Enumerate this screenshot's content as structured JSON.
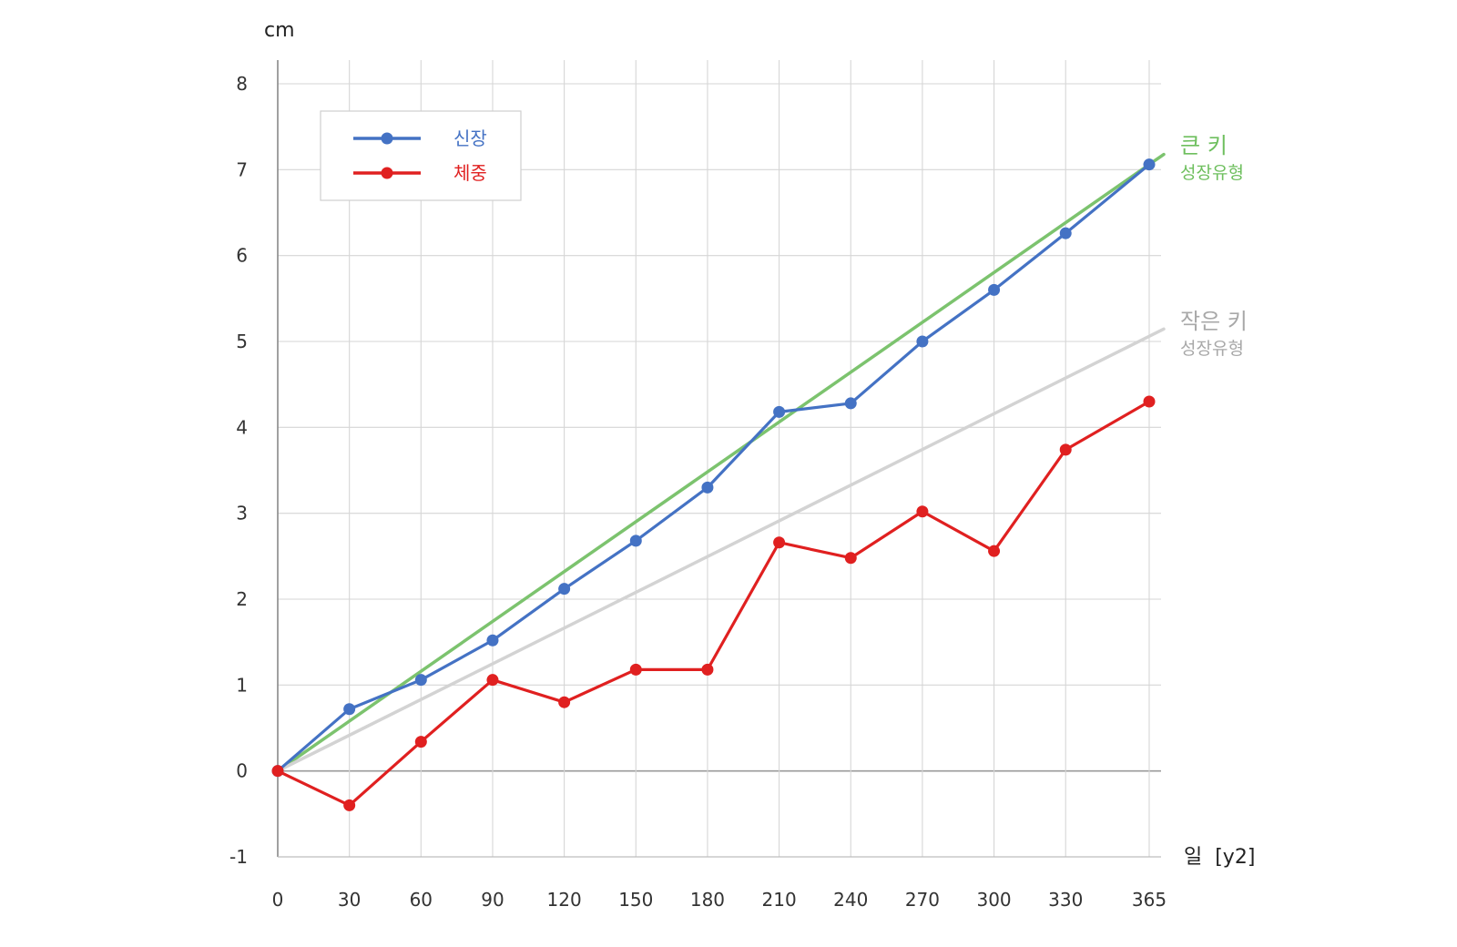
{
  "chart_data": {
    "type": "line",
    "y_unit": "cm",
    "x_unit": "일  [y2]",
    "x": [
      0,
      30,
      60,
      90,
      120,
      150,
      180,
      210,
      240,
      270,
      300,
      330,
      365
    ],
    "x_ticks": [
      "0",
      "30",
      "60",
      "90",
      "120",
      "150",
      "180",
      "210",
      "240",
      "270",
      "300",
      "330",
      "365"
    ],
    "y_ticks": [
      "-1",
      "0",
      "1",
      "2",
      "3",
      "4",
      "5",
      "6",
      "7",
      "8"
    ],
    "ylim": [
      -1,
      8
    ],
    "grid": true,
    "legend_position": "top-left",
    "series": [
      {
        "name": "신장",
        "color": "#4472c4",
        "values": [
          0,
          0.72,
          1.06,
          1.52,
          2.12,
          2.68,
          3.3,
          4.18,
          4.28,
          5.0,
          5.6,
          6.26,
          7.06
        ]
      },
      {
        "name": "체중",
        "color": "#e02020",
        "values": [
          0,
          -0.4,
          0.34,
          1.06,
          0.8,
          1.18,
          1.18,
          2.66,
          2.48,
          3.02,
          2.56,
          3.74,
          4.3
        ]
      }
    ],
    "reference_lines": [
      {
        "name_main": "큰 키",
        "name_sub": "성장유형",
        "color": "#7cc36e",
        "label_color": "#6ebf5e",
        "x": [
          0,
          365
        ],
        "values": [
          0,
          7.06
        ]
      },
      {
        "name_main": "작은 키",
        "name_sub": "성장유형",
        "color": "#d3d3d3",
        "label_color": "#a8a8a8",
        "x": [
          0,
          365
        ],
        "values": [
          0,
          5.06
        ]
      }
    ]
  }
}
